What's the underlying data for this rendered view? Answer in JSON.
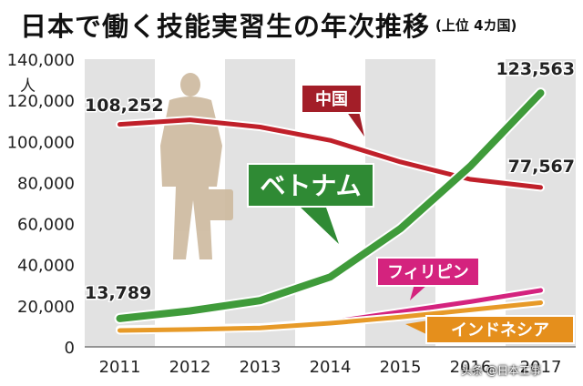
{
  "title": "日本で働く技能実習生の年次推移",
  "subtitle": "(上位 4カ国)",
  "watermark": "头条 @日本工事",
  "chart_data": {
    "type": "line",
    "x": [
      "2011",
      "2012",
      "2013",
      "2014",
      "2015",
      "2016",
      "2017"
    ],
    "ylim": [
      0,
      140000
    ],
    "yticks": [
      "0",
      "20,000",
      "40,000",
      "60,000",
      "80,000",
      "100,000",
      "120,000",
      "140,000"
    ],
    "yunit": "人",
    "series": [
      {
        "name": "中国",
        "color": "#c0202a",
        "label_color": "#a31e28",
        "values": [
          108252,
          110500,
          107000,
          100500,
          90000,
          81500,
          77567
        ]
      },
      {
        "name": "ベトナム",
        "color": "#3f9b3a",
        "label_color": "#2f8a34",
        "values": [
          13789,
          17500,
          22500,
          34000,
          57500,
          88000,
          123563
        ]
      },
      {
        "name": "フィリピン",
        "color": "#d4237e",
        "label_color": "#d4237e",
        "values": [
          8500,
          9000,
          9500,
          12000,
          17000,
          22000,
          27500
        ]
      },
      {
        "name": "インドネシア",
        "color": "#e79a28",
        "label_color": "#e58f1c",
        "values": [
          8000,
          8500,
          9200,
          11500,
          14500,
          18000,
          21500
        ]
      }
    ],
    "data_labels": [
      {
        "text": "108,252"
      },
      {
        "text": "13,789"
      },
      {
        "text": "123,563"
      },
      {
        "text": "77,567"
      }
    ]
  }
}
